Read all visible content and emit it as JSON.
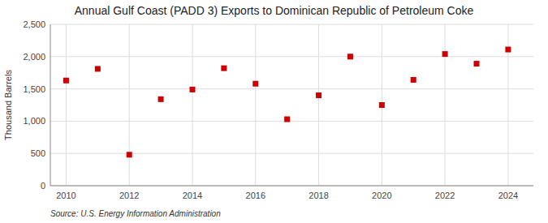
{
  "chart_data": {
    "type": "scatter",
    "title": "Annual Gulf Coast (PADD 3) Exports to Dominican Republic of Petroleum Coke",
    "ylabel": "Thousand Barrels",
    "annotations": [
      "Source: U.S. Energy Information Administration"
    ],
    "x": [
      2010,
      2011,
      2012,
      2013,
      2014,
      2015,
      2016,
      2017,
      2018,
      2019,
      2020,
      2021,
      2022,
      2023,
      2024
    ],
    "values": [
      1630,
      1810,
      480,
      1340,
      1490,
      1820,
      1580,
      1030,
      1400,
      2000,
      1250,
      1640,
      2040,
      1890,
      2110
    ],
    "color": "#cc0000",
    "marker": "square",
    "xlim": [
      2009.5,
      2024.8
    ],
    "xticks": [
      2010,
      2012,
      2014,
      2016,
      2018,
      2020,
      2022,
      2024
    ],
    "ylim": [
      0,
      2500
    ],
    "yticks": [
      0,
      500,
      {
        "value": 1000,
        "label": "1,000"
      },
      {
        "value": 1500,
        "label": "1,500"
      },
      {
        "value": 2000,
        "label": "2,000"
      },
      {
        "value": 2500,
        "label": "2,500"
      }
    ],
    "grid": true
  }
}
